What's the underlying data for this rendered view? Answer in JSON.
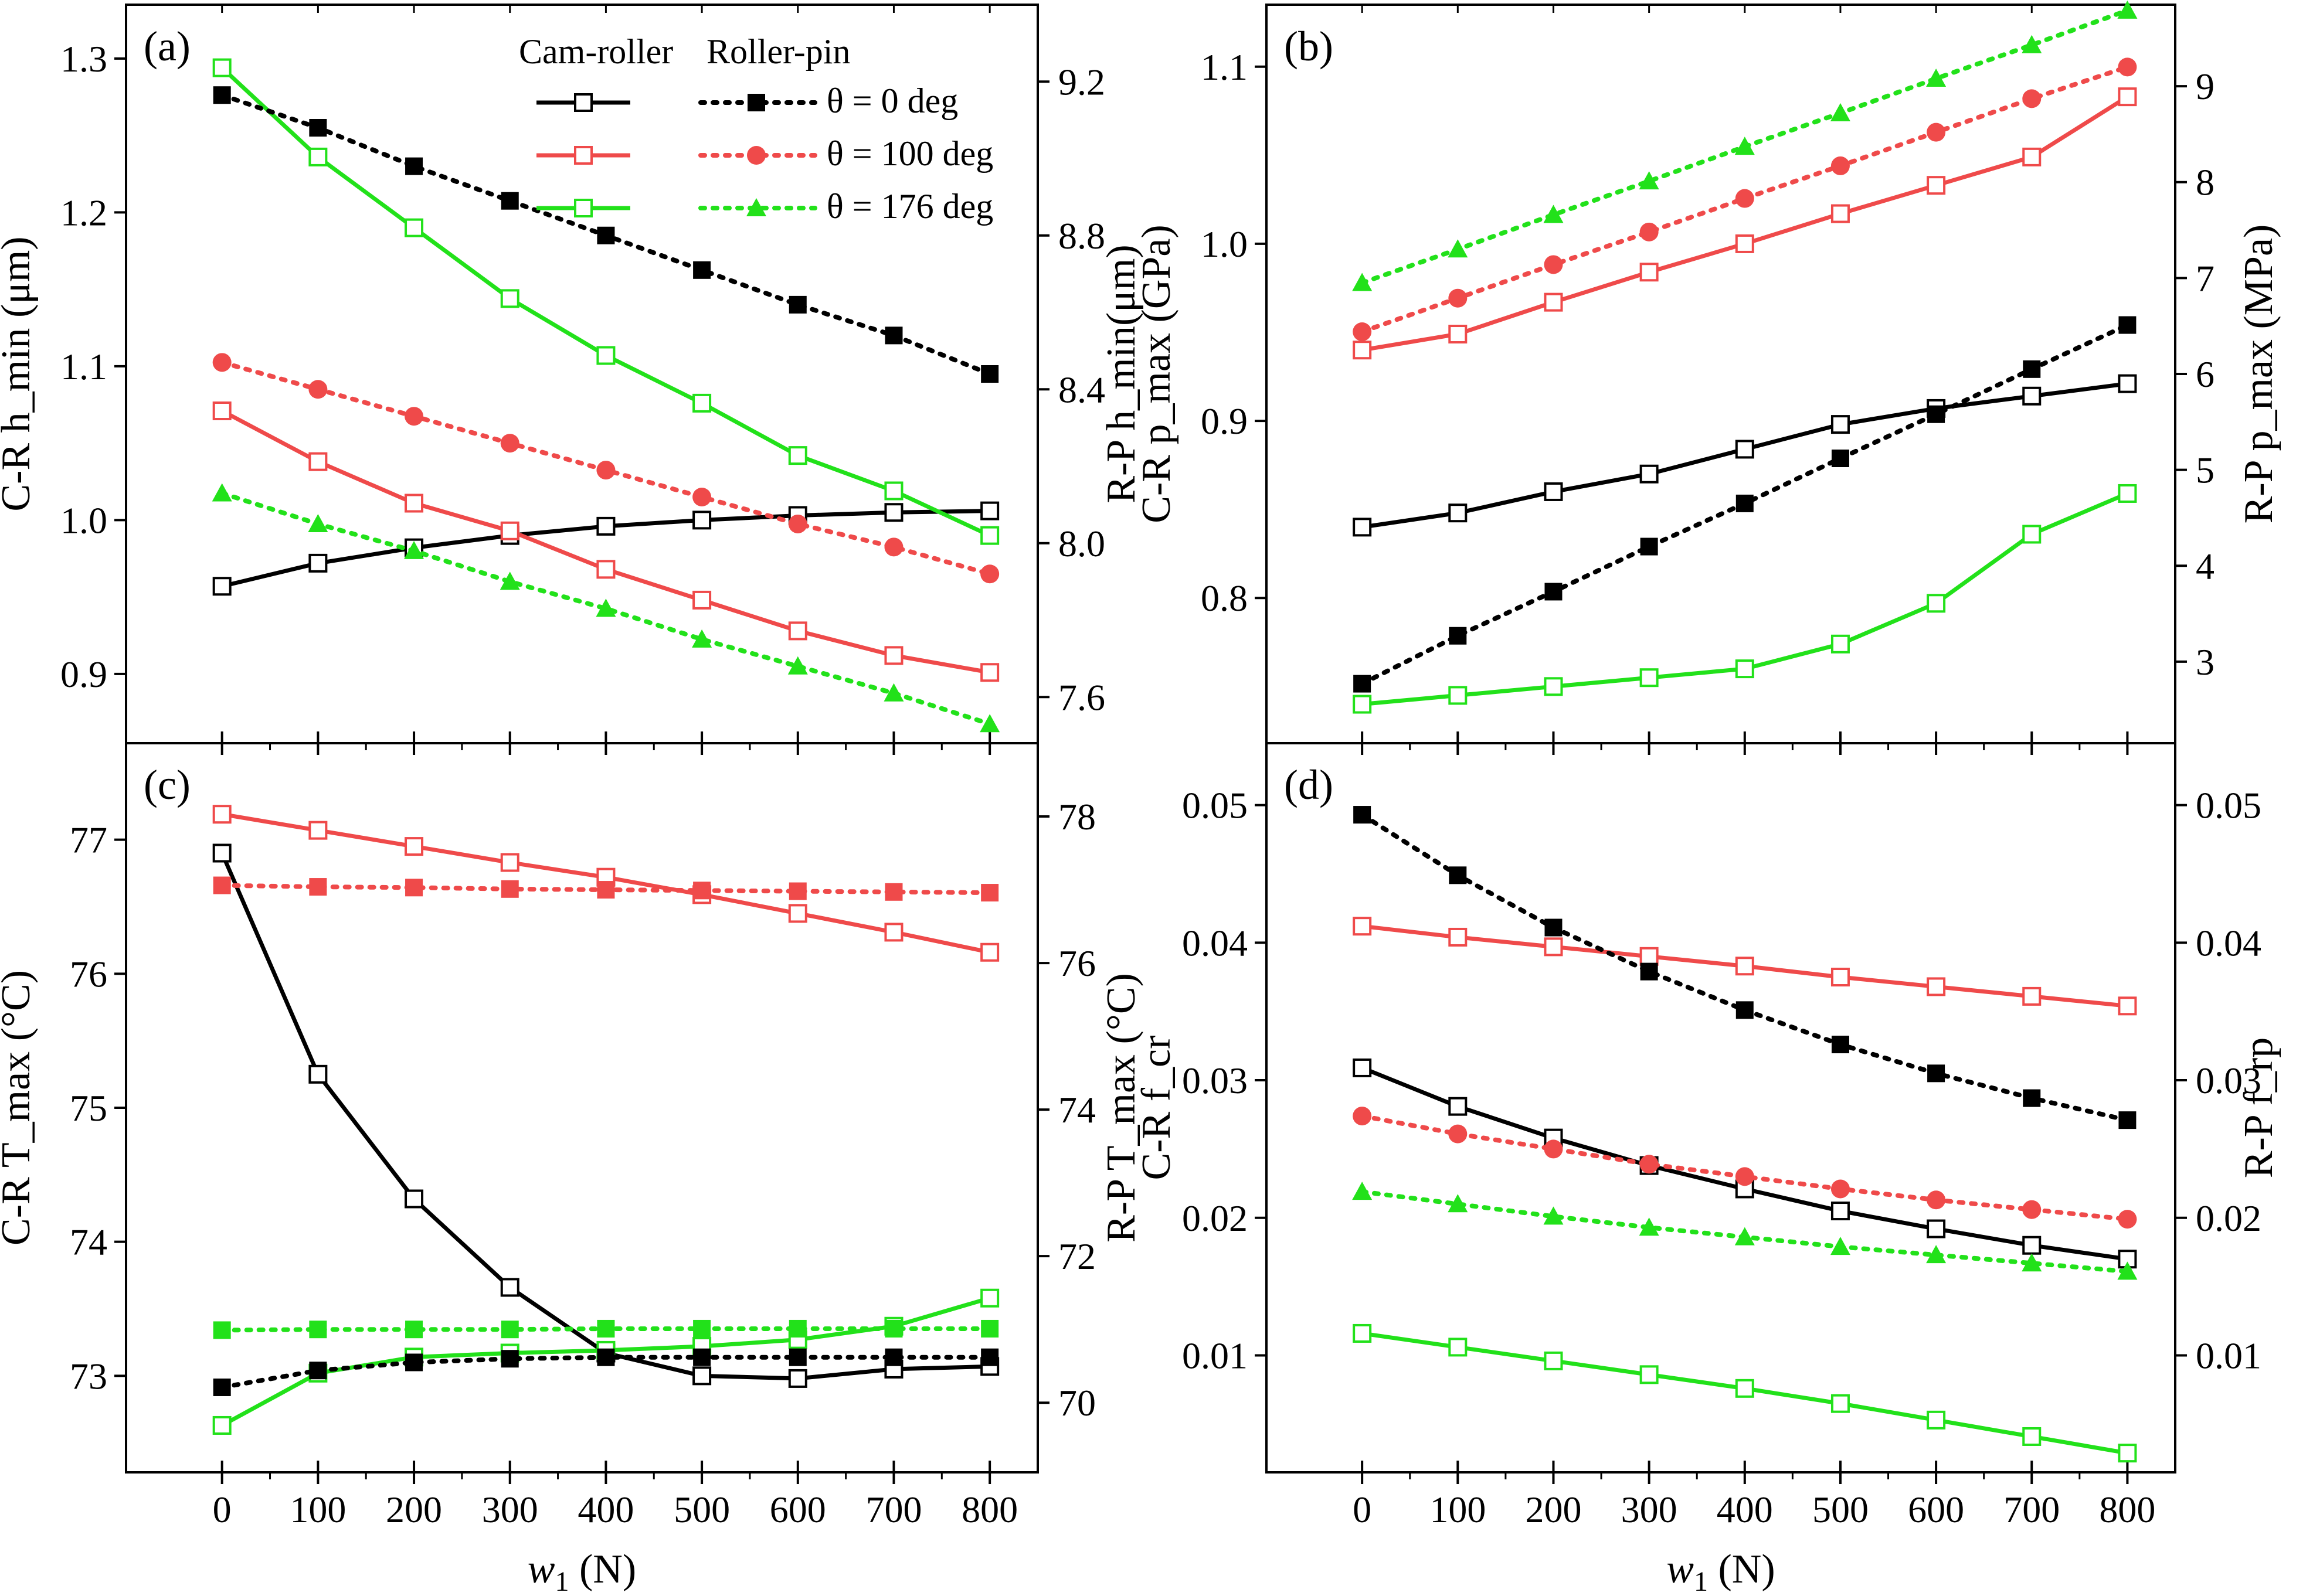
{
  "figure": {
    "x_values": [
      0,
      100,
      200,
      300,
      400,
      500,
      600,
      700,
      800
    ],
    "legend": {
      "col1": "Cam-roller",
      "col2": "Roller-pin",
      "entries": [
        "θ = 0 deg",
        "θ = 100 deg",
        "θ = 176 deg"
      ]
    },
    "colors": {
      "theta0": "#000000",
      "theta100": "#ef4a4a",
      "theta176": "#22e11a"
    }
  },
  "chart_data": [
    {
      "panel": "(a)",
      "type": "line",
      "xlabel": "w1 (N)",
      "ylabel_left": "C-R h_min (μm)",
      "ylabel_right": "R-P h_min(μm)",
      "x": [
        0,
        100,
        200,
        300,
        400,
        500,
        600,
        700,
        800
      ],
      "xlim": [
        -100,
        850
      ],
      "ylim_left": [
        0.855,
        1.335
      ],
      "yticks_left": [
        0.9,
        1.0,
        1.1,
        1.2,
        1.3
      ],
      "ylim_right": [
        7.48,
        9.4
      ],
      "yticks_right": [
        7.6,
        8.0,
        8.4,
        8.8,
        9.2
      ],
      "series": [
        {
          "name": "Cam-roller θ = 0 deg",
          "axis": "left",
          "style": "solid",
          "marker": "open-square",
          "color": "theta0",
          "values": [
            0.957,
            0.972,
            0.982,
            0.99,
            0.996,
            1.0,
            1.003,
            1.005,
            1.006
          ]
        },
        {
          "name": "Cam-roller θ = 100 deg",
          "axis": "left",
          "style": "solid",
          "marker": "open-square",
          "color": "theta100",
          "values": [
            1.071,
            1.038,
            1.011,
            0.993,
            0.968,
            0.948,
            0.928,
            0.912,
            0.901
          ]
        },
        {
          "name": "Cam-roller θ = 176 deg",
          "axis": "left",
          "style": "solid",
          "marker": "open-square",
          "color": "theta176",
          "values": [
            1.294,
            1.236,
            1.19,
            1.144,
            1.107,
            1.076,
            1.042,
            1.019,
            0.99
          ]
        },
        {
          "name": "Roller-pin θ = 0 deg",
          "axis": "right",
          "style": "dotted",
          "marker": "filled-square",
          "color": "theta0",
          "values": [
            9.165,
            9.08,
            8.98,
            8.89,
            8.8,
            8.71,
            8.62,
            8.54,
            8.44
          ]
        },
        {
          "name": "Roller-pin θ = 100 deg",
          "axis": "right",
          "style": "dotted",
          "marker": "filled-circle",
          "color": "theta100",
          "values": [
            8.47,
            8.4,
            8.33,
            8.26,
            8.19,
            8.12,
            8.05,
            7.99,
            7.92
          ]
        },
        {
          "name": "Roller-pin θ = 176 deg",
          "axis": "right",
          "style": "dotted",
          "marker": "filled-triangle",
          "color": "theta176",
          "values": [
            8.13,
            8.05,
            7.98,
            7.9,
            7.83,
            7.75,
            7.68,
            7.61,
            7.53
          ]
        }
      ]
    },
    {
      "panel": "(b)",
      "type": "line",
      "xlabel": "w1 (N)",
      "ylabel_left": "C-R p_max (GPa)",
      "ylabel_right": "R-P p_max (MPa)",
      "x": [
        0,
        100,
        200,
        300,
        400,
        500,
        600,
        700,
        800
      ],
      "xlim": [
        -100,
        850
      ],
      "ylim_left": [
        0.718,
        1.135
      ],
      "yticks_left": [
        0.8,
        0.9,
        1.0,
        1.1
      ],
      "ylim_right": [
        2.15,
        9.85
      ],
      "yticks_right": [
        3,
        4,
        5,
        6,
        7,
        8,
        9
      ],
      "series": [
        {
          "name": "Cam-roller θ = 0 deg",
          "axis": "left",
          "style": "solid",
          "marker": "open-square",
          "color": "theta0",
          "values": [
            0.84,
            0.848,
            0.86,
            0.87,
            0.884,
            0.898,
            0.907,
            0.914,
            0.921
          ]
        },
        {
          "name": "Cam-roller θ = 100 deg",
          "axis": "left",
          "style": "solid",
          "marker": "open-square",
          "color": "theta100",
          "values": [
            0.94,
            0.949,
            0.967,
            0.984,
            1.0,
            1.017,
            1.033,
            1.049,
            1.083
          ]
        },
        {
          "name": "Cam-roller θ = 176 deg",
          "axis": "left",
          "style": "solid",
          "marker": "open-square",
          "color": "theta176",
          "values": [
            0.74,
            0.745,
            0.75,
            0.755,
            0.76,
            0.774,
            0.797,
            0.836,
            0.859
          ]
        },
        {
          "name": "Roller-pin θ = 0 deg",
          "axis": "right",
          "style": "dotted",
          "marker": "filled-square",
          "color": "theta0",
          "values": [
            2.77,
            3.27,
            3.73,
            4.2,
            4.65,
            5.12,
            5.58,
            6.05,
            6.51
          ]
        },
        {
          "name": "Roller-pin θ = 100 deg",
          "axis": "right",
          "style": "dotted",
          "marker": "filled-circle",
          "color": "theta100",
          "values": [
            6.44,
            6.79,
            7.14,
            7.48,
            7.83,
            8.17,
            8.52,
            8.87,
            9.2
          ]
        },
        {
          "name": "Roller-pin θ = 176 deg",
          "axis": "right",
          "style": "dotted",
          "marker": "filled-triangle",
          "color": "theta176",
          "values": [
            6.95,
            7.3,
            7.66,
            8.01,
            8.37,
            8.72,
            9.08,
            9.43,
            9.79
          ]
        }
      ]
    },
    {
      "panel": "(c)",
      "type": "line",
      "xlabel": "w1 (N)",
      "ylabel_left": "C-R T_max (°C)",
      "ylabel_right": "R-P T_max (°C)",
      "x": [
        0,
        100,
        200,
        300,
        400,
        500,
        600,
        700,
        800
      ],
      "xlim": [
        -100,
        850
      ],
      "ylim_left": [
        72.28,
        77.72
      ],
      "yticks_left": [
        73,
        74,
        75,
        76,
        77
      ],
      "ylim_right": [
        69.05,
        79.0
      ],
      "yticks_right": [
        70,
        72,
        74,
        76,
        78
      ],
      "series": [
        {
          "name": "Cam-roller θ = 0 deg",
          "axis": "left",
          "style": "solid",
          "marker": "open-square",
          "color": "theta0",
          "values": [
            76.9,
            75.25,
            74.32,
            73.66,
            73.17,
            73.0,
            72.98,
            73.05,
            73.07
          ]
        },
        {
          "name": "Cam-roller θ = 100 deg",
          "axis": "left",
          "style": "solid",
          "marker": "open-square",
          "color": "theta100",
          "values": [
            77.19,
            77.07,
            76.95,
            76.83,
            76.72,
            76.59,
            76.45,
            76.31,
            76.16
          ]
        },
        {
          "name": "Cam-roller θ = 176 deg",
          "axis": "left",
          "style": "solid",
          "marker": "open-square",
          "color": "theta176",
          "values": [
            72.63,
            73.02,
            73.14,
            73.17,
            73.19,
            73.22,
            73.27,
            73.37,
            73.58
          ]
        },
        {
          "name": "Roller-pin θ = 0 deg",
          "axis": "right",
          "style": "dotted",
          "marker": "filled-square",
          "color": "theta0",
          "values": [
            70.21,
            70.44,
            70.55,
            70.6,
            70.62,
            70.62,
            70.62,
            70.62,
            70.62
          ]
        },
        {
          "name": "Roller-pin θ = 100 deg",
          "axis": "right",
          "style": "dotted",
          "marker": "filled-square",
          "color": "theta100",
          "values": [
            77.06,
            77.04,
            77.03,
            77.01,
            77.0,
            76.99,
            76.98,
            76.97,
            76.96
          ]
        },
        {
          "name": "Roller-pin θ = 176 deg",
          "axis": "right",
          "style": "dotted",
          "marker": "filled-square",
          "color": "theta176",
          "values": [
            70.99,
            71.0,
            71.0,
            71.0,
            71.01,
            71.01,
            71.01,
            71.01,
            71.01
          ]
        }
      ]
    },
    {
      "panel": "(d)",
      "type": "line",
      "xlabel": "w1 (N)",
      "ylabel_left": "C-R f_cr",
      "ylabel_right": "R-P f_rp",
      "x": [
        0,
        100,
        200,
        300,
        400,
        500,
        600,
        700,
        800
      ],
      "xlim": [
        -100,
        850
      ],
      "ylim_left": [
        0.0015,
        0.0545
      ],
      "yticks_left": [
        0.01,
        0.02,
        0.03,
        0.04,
        0.05
      ],
      "ylim_right": [
        0.0015,
        0.0545
      ],
      "yticks_right": [
        0.01,
        0.02,
        0.03,
        0.04,
        0.05
      ],
      "series": [
        {
          "name": "Cam-roller θ = 0 deg",
          "axis": "left",
          "style": "solid",
          "marker": "open-square",
          "color": "theta0",
          "values": [
            0.0309,
            0.0281,
            0.0258,
            0.0238,
            0.0221,
            0.0205,
            0.0192,
            0.018,
            0.017
          ]
        },
        {
          "name": "Cam-roller θ = 100 deg",
          "axis": "left",
          "style": "solid",
          "marker": "open-square",
          "color": "theta100",
          "values": [
            0.0412,
            0.0404,
            0.0397,
            0.039,
            0.0383,
            0.0375,
            0.0368,
            0.0361,
            0.0354
          ]
        },
        {
          "name": "Cam-roller θ = 176 deg",
          "axis": "left",
          "style": "solid",
          "marker": "open-square",
          "color": "theta176",
          "values": [
            0.0116,
            0.0106,
            0.0096,
            0.0086,
            0.0076,
            0.0065,
            0.0053,
            0.0041,
            0.0029
          ]
        },
        {
          "name": "Roller-pin θ = 0 deg",
          "axis": "right",
          "style": "dotted",
          "marker": "filled-square",
          "color": "theta0",
          "values": [
            0.0493,
            0.0449,
            0.0411,
            0.0379,
            0.0351,
            0.0326,
            0.0305,
            0.0287,
            0.0271
          ]
        },
        {
          "name": "Roller-pin θ = 100 deg",
          "axis": "right",
          "style": "dotted",
          "marker": "filled-circle",
          "color": "theta100",
          "values": [
            0.0274,
            0.0261,
            0.025,
            0.0239,
            0.023,
            0.0221,
            0.0213,
            0.0206,
            0.0199
          ]
        },
        {
          "name": "Roller-pin θ = 176 deg",
          "axis": "right",
          "style": "dotted",
          "marker": "filled-triangle",
          "color": "theta176",
          "values": [
            0.0219,
            0.021,
            0.0201,
            0.0193,
            0.0186,
            0.0179,
            0.0173,
            0.0167,
            0.0161
          ]
        }
      ]
    }
  ]
}
